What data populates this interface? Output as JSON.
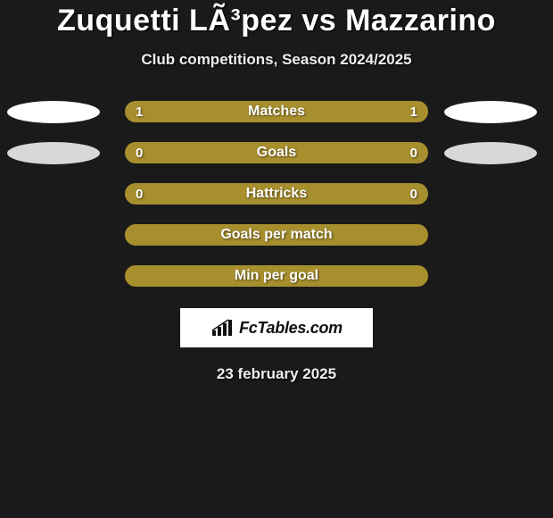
{
  "title": "Zuquetti LÃ³pez vs Mazzarino",
  "subtitle": "Club competitions, Season 2024/2025",
  "colors": {
    "olive": "#a88f2e",
    "left_ellipse_light": "#ffffff",
    "right_ellipse_light": "#ffffff",
    "left_ellipse_dark": "#d8d8d8",
    "right_ellipse_dark": "#d8d8d8",
    "bg": "#1a1a1a"
  },
  "rows": [
    {
      "label": "Matches",
      "left": "1",
      "right": "1",
      "ellipses": true,
      "ellipse_variant": "light"
    },
    {
      "label": "Goals",
      "left": "0",
      "right": "0",
      "ellipses": true,
      "ellipse_variant": "dark"
    },
    {
      "label": "Hattricks",
      "left": "0",
      "right": "0",
      "ellipses": false
    },
    {
      "label": "Goals per match",
      "left": "",
      "right": "",
      "ellipses": false
    },
    {
      "label": "Min per goal",
      "left": "",
      "right": "",
      "ellipses": false
    }
  ],
  "badge_text": "FcTables.com",
  "date": "23 february 2025"
}
